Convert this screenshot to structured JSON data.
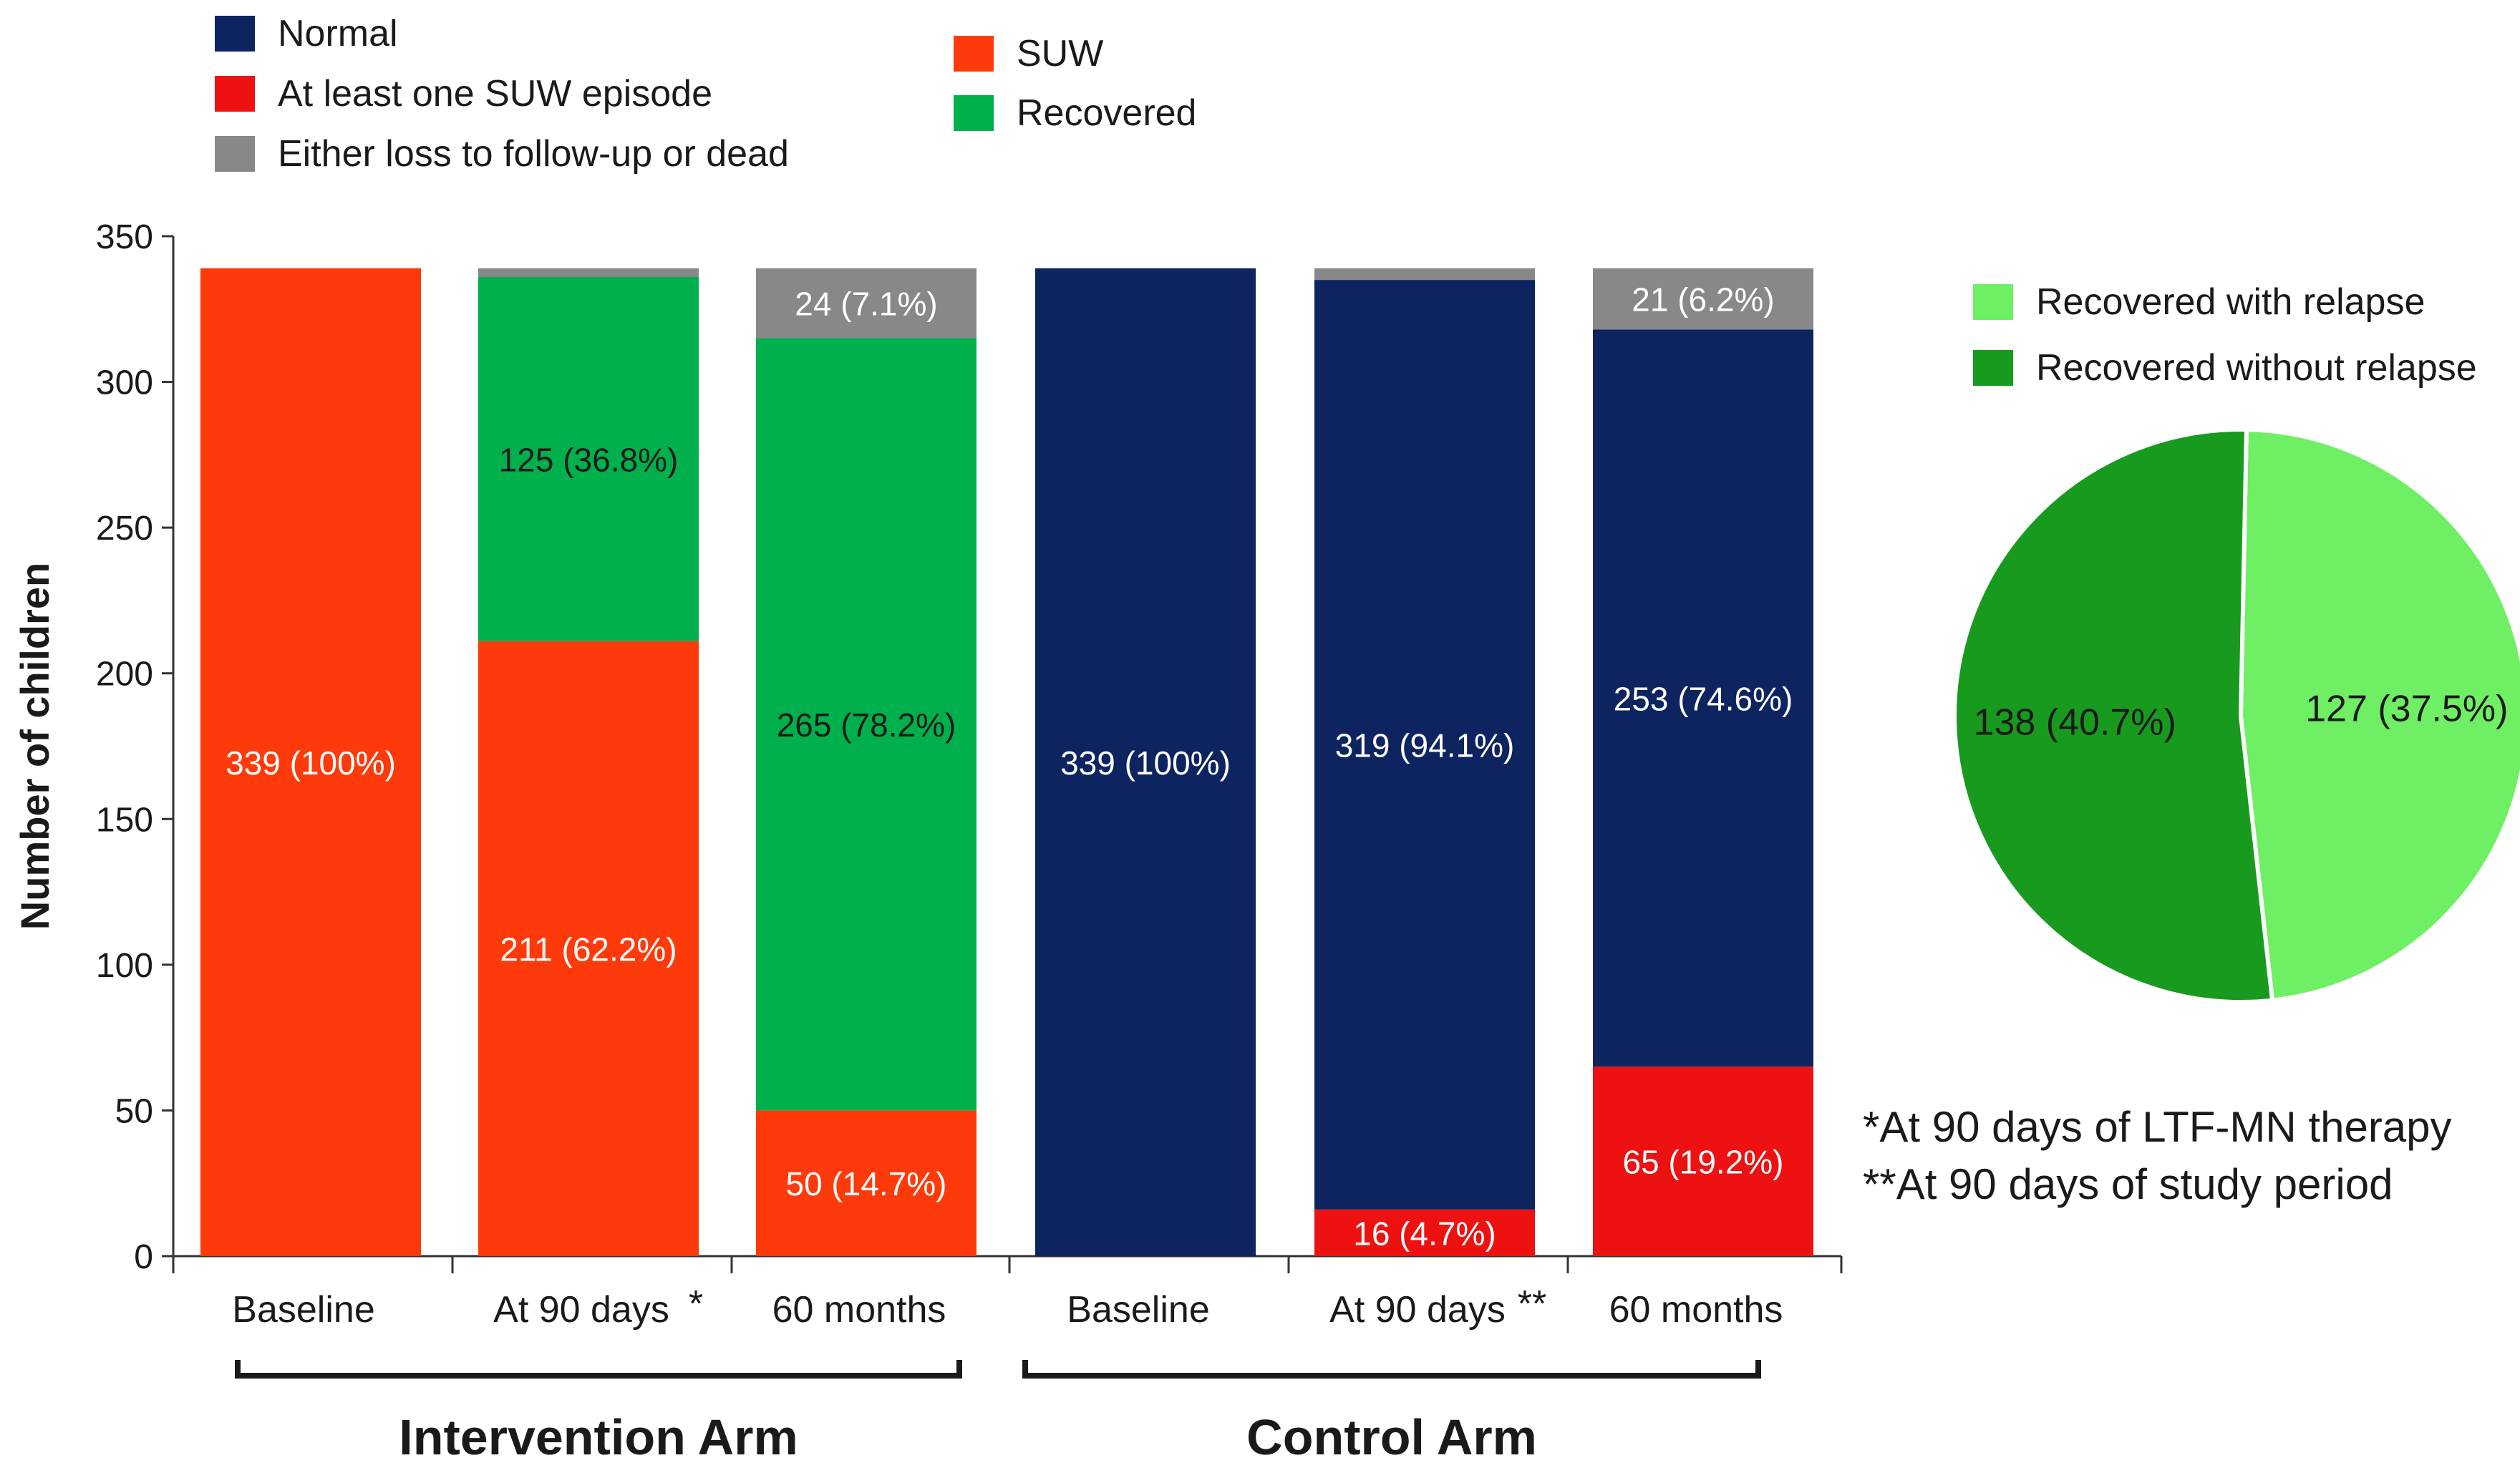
{
  "legend_top": [
    {
      "label": "Normal",
      "color": "#0d2461"
    },
    {
      "label": "At least one SUW episode",
      "color": "#ee1111"
    },
    {
      "label": "Either loss to follow-up or dead",
      "color": "#888888"
    },
    {
      "label": "SUW",
      "color": "#ff3a0a"
    },
    {
      "label": "Recovered",
      "color": "#00b04c"
    }
  ],
  "legend_pie": [
    {
      "label": "Recovered with relapse",
      "color": "#6fef63"
    },
    {
      "label": "Recovered without relapse",
      "color": "#189a1f"
    }
  ],
  "notes": [
    "*At 90 days of LTF-MN therapy",
    "**At 90 days of study period"
  ],
  "chart_data": [
    {
      "type": "bar",
      "stacked": true,
      "ylabel": "Number of children",
      "ylim": [
        0,
        350
      ],
      "yticks": [
        0,
        50,
        100,
        150,
        200,
        250,
        300,
        350
      ],
      "categories": [
        "Baseline",
        "At 90 days",
        "60 months",
        "Baseline",
        "At 90 days",
        "60 months"
      ],
      "category_markers": [
        "",
        "*",
        "",
        "",
        "**",
        ""
      ],
      "groups": [
        {
          "label": "Intervention Arm",
          "categories": [
            0,
            1,
            2
          ]
        },
        {
          "label": "Control Arm",
          "categories": [
            3,
            4,
            5
          ]
        }
      ],
      "bars": [
        [
          {
            "series": "SUW",
            "value": 339,
            "label": "339 (100%)",
            "color": "#ff3a0a",
            "label_color": "#ffffff"
          }
        ],
        [
          {
            "series": "SUW",
            "value": 211,
            "label": "211 (62.2%)",
            "color": "#ff3a0a",
            "label_color": "#ffffff"
          },
          {
            "series": "Recovered",
            "value": 125,
            "label": "125 (36.8%)",
            "color": "#00b04c",
            "label_color": "#1a1a1a"
          },
          {
            "series": "Either loss to follow-up or dead",
            "value": 3,
            "label": "",
            "color": "#888888",
            "label_color": "#ffffff"
          }
        ],
        [
          {
            "series": "SUW",
            "value": 50,
            "label": "50 (14.7%)",
            "color": "#ff3a0a",
            "label_color": "#ffffff"
          },
          {
            "series": "Recovered",
            "value": 265,
            "label": "265 (78.2%)",
            "color": "#00b04c",
            "label_color": "#1a1a1a"
          },
          {
            "series": "Either loss to follow-up or dead",
            "value": 24,
            "label": "24 (7.1%)",
            "color": "#888888",
            "label_color": "#ffffff"
          }
        ],
        [
          {
            "series": "Normal",
            "value": 339,
            "label": "339 (100%)",
            "color": "#0d2461",
            "label_color": "#ffffff"
          }
        ],
        [
          {
            "series": "At least one SUW episode",
            "value": 16,
            "label": "16 (4.7%)",
            "color": "#ee1111",
            "label_color": "#ffffff"
          },
          {
            "series": "Normal",
            "value": 319,
            "label": "319 (94.1%)",
            "color": "#0d2461",
            "label_color": "#ffffff"
          },
          {
            "series": "Either loss to follow-up or dead",
            "value": 4,
            "label": "",
            "color": "#888888",
            "label_color": "#ffffff"
          }
        ],
        [
          {
            "series": "At least one SUW episode",
            "value": 65,
            "label": "65 (19.2%)",
            "color": "#ee1111",
            "label_color": "#ffffff"
          },
          {
            "series": "Normal",
            "value": 253,
            "label": "253 (74.6%)",
            "color": "#0d2461",
            "label_color": "#ffffff"
          },
          {
            "series": "Either loss to follow-up or dead",
            "value": 21,
            "label": "21 (6.2%)",
            "color": "#888888",
            "label_color": "#ffffff"
          }
        ]
      ]
    },
    {
      "type": "pie",
      "slices": [
        {
          "label": "Recovered with relapse",
          "value": 127,
          "display": "127 (37.5%)",
          "color": "#6fef63"
        },
        {
          "label": "Recovered without relapse",
          "value": 138,
          "display": "138 (40.7%)",
          "color": "#189a1f"
        }
      ]
    }
  ]
}
